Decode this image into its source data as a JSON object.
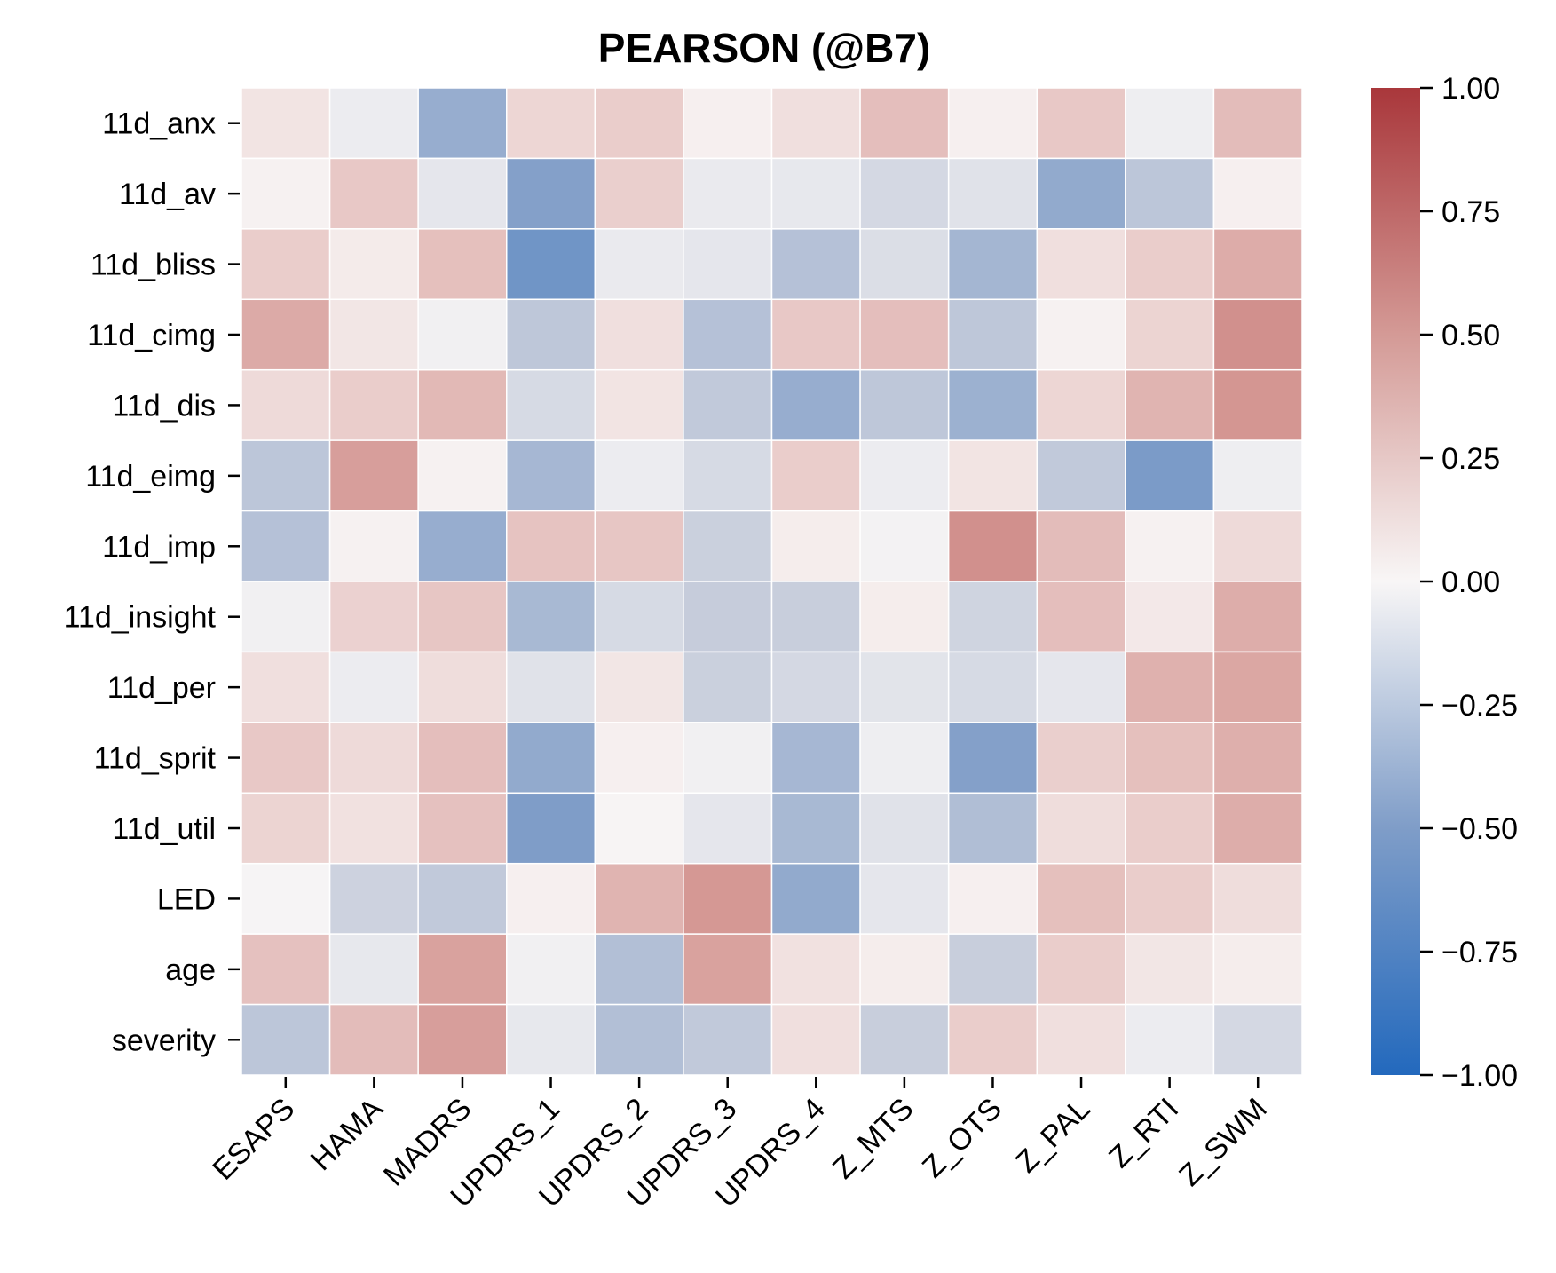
{
  "chart_data": {
    "type": "heatmap",
    "title": "PEARSON (@B7)",
    "xlabel": "",
    "ylabel": "",
    "columns": [
      "ESAPS",
      "HAMA",
      "MADRS",
      "UPDRS_1",
      "UPDRS_2",
      "UPDRS_3",
      "UPDRS_4",
      "Z_MTS",
      "Z_OTS",
      "Z_PAL",
      "Z_RTI",
      "Z_SWM"
    ],
    "rows": [
      "11d_anx",
      "11d_av",
      "11d_bliss",
      "11d_cimg",
      "11d_dis",
      "11d_eimg",
      "11d_imp",
      "11d_insight",
      "11d_per",
      "11d_sprit",
      "11d_util",
      "LED",
      "age",
      "severity"
    ],
    "values": [
      [
        0.08,
        -0.05,
        -0.4,
        0.14,
        0.18,
        0.03,
        0.1,
        0.26,
        0.03,
        0.2,
        -0.04,
        0.27
      ],
      [
        0.02,
        0.2,
        -0.08,
        -0.48,
        0.17,
        -0.06,
        -0.07,
        -0.15,
        -0.1,
        -0.42,
        -0.25,
        0.03
      ],
      [
        0.18,
        0.05,
        0.25,
        -0.58,
        -0.06,
        -0.08,
        -0.28,
        -0.12,
        -0.35,
        0.1,
        0.18,
        0.37
      ],
      [
        0.38,
        0.07,
        -0.03,
        -0.24,
        0.1,
        -0.28,
        0.2,
        0.26,
        -0.24,
        0.02,
        0.15,
        0.53
      ],
      [
        0.12,
        0.18,
        0.29,
        -0.14,
        0.08,
        -0.23,
        -0.4,
        -0.24,
        -0.38,
        0.14,
        0.32,
        0.5
      ],
      [
        -0.25,
        0.45,
        0.02,
        -0.34,
        -0.05,
        -0.14,
        0.18,
        -0.05,
        0.08,
        -0.23,
        -0.52,
        -0.04
      ],
      [
        -0.28,
        0.02,
        -0.4,
        0.23,
        0.21,
        -0.19,
        0.04,
        -0.02,
        0.53,
        0.27,
        0.02,
        0.12
      ],
      [
        -0.03,
        0.16,
        0.21,
        -0.33,
        -0.14,
        -0.21,
        -0.2,
        0.04,
        -0.17,
        0.26,
        0.06,
        0.36
      ],
      [
        0.1,
        -0.05,
        0.11,
        -0.1,
        0.07,
        -0.19,
        -0.15,
        -0.09,
        -0.14,
        -0.08,
        0.34,
        0.4
      ],
      [
        0.2,
        0.12,
        0.26,
        -0.42,
        0.03,
        -0.03,
        -0.34,
        -0.04,
        -0.48,
        0.17,
        0.25,
        0.35
      ],
      [
        0.15,
        0.09,
        0.24,
        -0.5,
        0.01,
        -0.08,
        -0.33,
        -0.1,
        -0.3,
        0.11,
        0.18,
        0.36
      ],
      [
        -0.01,
        -0.18,
        -0.23,
        0.03,
        0.32,
        0.49,
        -0.42,
        -0.08,
        0.03,
        0.25,
        0.18,
        0.11
      ],
      [
        0.24,
        -0.07,
        0.43,
        -0.03,
        -0.29,
        0.43,
        0.09,
        0.04,
        -0.2,
        0.18,
        0.07,
        0.04
      ],
      [
        -0.25,
        0.27,
        0.45,
        -0.07,
        -0.29,
        -0.23,
        0.1,
        -0.2,
        0.18,
        0.1,
        -0.05,
        -0.15
      ]
    ],
    "colorbar": {
      "vmin": -1.0,
      "vmax": 1.0,
      "ticks": [
        "1.00",
        "0.75",
        "0.50",
        "0.25",
        "0.00",
        "−0.25",
        "−0.50",
        "−0.75",
        "−1.00"
      ],
      "tick_values": [
        1.0,
        0.75,
        0.5,
        0.25,
        0.0,
        -0.25,
        -0.5,
        -0.75,
        -1.0
      ],
      "colormap": "vlag",
      "color_stops": [
        "#2369bd",
        "#a9b6cf",
        "#f8f6f6",
        "#d8a7a3",
        "#a9373b"
      ]
    },
    "grid": true,
    "legend": "colorbar-right"
  }
}
